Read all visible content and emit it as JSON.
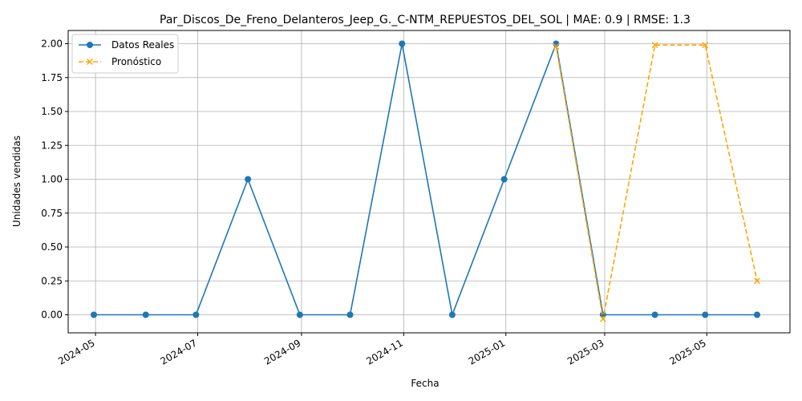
{
  "chart_data": {
    "type": "line",
    "title": "Par_Discos_De_Freno_Delanteros_Jeep_G._C-NTM_REPUESTOS_DEL_SOL | MAE: 0.9 | RMSE: 1.3",
    "xlabel": "Fecha",
    "ylabel": "Unidades vendidas",
    "x_tick_labels": [
      "2024-05",
      "2024-07",
      "2024-09",
      "2024-11",
      "2025-01",
      "2025-03",
      "2025-05"
    ],
    "y_tick_labels": [
      "0.00",
      "0.25",
      "0.50",
      "0.75",
      "1.00",
      "1.25",
      "1.50",
      "1.75",
      "2.00"
    ],
    "ylim": [
      -0.13,
      2.1
    ],
    "grid": true,
    "legend": "upper-left",
    "series": [
      {
        "name": "Datos Reales",
        "color": "#1f77b4",
        "marker": "circle",
        "linestyle": "solid",
        "x": [
          "2024-04-30",
          "2024-05-31",
          "2024-06-30",
          "2024-07-31",
          "2024-08-31",
          "2024-09-30",
          "2024-10-31",
          "2024-11-30",
          "2024-12-31",
          "2025-01-31",
          "2025-02-28",
          "2025-03-31",
          "2025-04-30",
          "2025-05-31"
        ],
        "values": [
          0,
          0,
          0,
          1,
          0,
          0,
          2,
          0,
          1,
          2,
          0,
          0,
          0,
          0
        ]
      },
      {
        "name": "Pronóstico",
        "color": "#ffa500",
        "marker": "x",
        "linestyle": "dashed",
        "x": [
          "2025-01-31",
          "2025-02-28",
          "2025-03-31",
          "2025-04-30",
          "2025-05-31"
        ],
        "values": [
          1.98,
          -0.03,
          1.99,
          1.99,
          0.25
        ]
      }
    ]
  }
}
